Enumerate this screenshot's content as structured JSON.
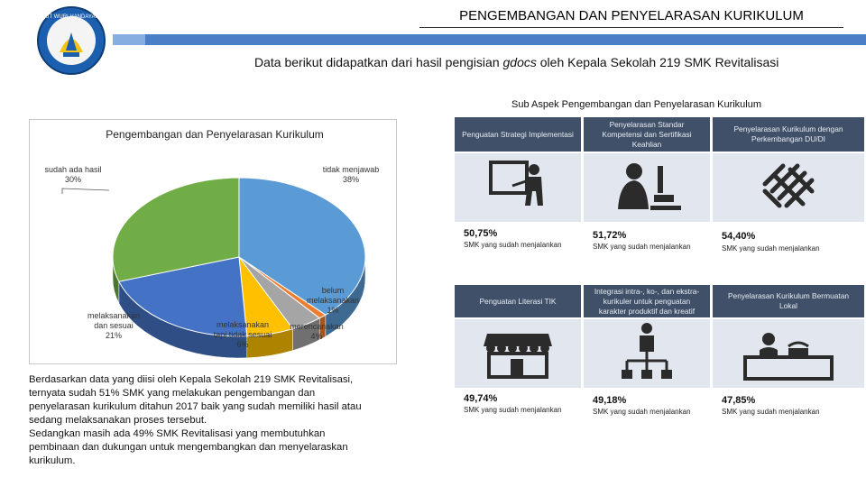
{
  "header": {
    "title": "PENGEMBANGAN DAN PENYELARASAN KURIKULUM",
    "subtitle_before": "Data berikut didapatkan dari hasil pengisian ",
    "subtitle_italic": "gdocs",
    "subtitle_after": " oleh Kepala Sekolah 219 SMK Revitalisasi",
    "logo_text": "TUT WURI HANDAYANI"
  },
  "right_heading": "Sub Aspek Pengembangan dan Penyelarasan Kurikulum",
  "chart_data": {
    "type": "pie",
    "title": "Pengembangan dan Penyelarasan Kurikulum",
    "slices": [
      {
        "name": "tidak menjawab",
        "value": 38,
        "label": "tidak menjawab\n38%",
        "color": "#5b9bd5"
      },
      {
        "name": "belum melaksanakan",
        "value": 1,
        "label": "belum\nmelaksanakan\n1%",
        "color": "#ed7d31"
      },
      {
        "name": "merencanakan",
        "value": 4,
        "label": "merencanakan\n4%",
        "color": "#a5a5a5"
      },
      {
        "name": "melaksanakan tapi tidak sesuai",
        "value": 6,
        "label": "melaksanakan\ntapi tidak sesuai\n6%",
        "color": "#ffc000"
      },
      {
        "name": "melaksanakan dan sesuai",
        "value": 21,
        "label": "melaksanakan\ndan sesuai\n21%",
        "color": "#4472c4"
      },
      {
        "name": "sudah ada hasil",
        "value": 30,
        "label": "sudah ada hasil\n30%",
        "color": "#70ad47"
      }
    ],
    "legend": "none"
  },
  "description": [
    "Berdasarkan data yang diisi oleh Kepala Sekolah 219 SMK Revitalisasi,",
    "ternyata sudah 51% SMK yang melakukan pengembangan dan",
    "penyelarasan kurikulum ditahun 2017 baik yang sudah memiliki hasil atau",
    "sedang melaksanakan proses tersebut.",
    "Sedangkan masih ada 49% SMK Revitalisasi yang membutuhkan",
    "pembinaan dan dukungan untuk mengembangkan dan menyelaraskan",
    "kurikulum."
  ],
  "tiles": [
    {
      "header": "Penguatan Strategi Implementasi",
      "percent": "50,75%",
      "caption": "SMK yang sudah menjalankan",
      "icon": "teacher-board-icon"
    },
    {
      "header": "Penyelarasan Standar Kompetensi dan Sertifikasi Keahlian",
      "percent": "51,72%",
      "caption": "SMK yang sudah menjalankan",
      "icon": "microscope-icon"
    },
    {
      "header": "Penyelarasan Kurikulum dengan Perkembangan DU/DI",
      "percent": "54,40%",
      "caption": "SMK yang sudah menjalankan",
      "icon": "woven-pattern-icon"
    },
    {
      "header": "Penguatan Literasi TIK",
      "percent": "49,74%",
      "caption": "SMK yang sudah menjalankan",
      "icon": "storefront-icon"
    },
    {
      "header": "Integrasi intra-, ko-, dan ekstra-kurikuler untuk penguatan karakter produktif dan kreatif",
      "percent": "49,18%",
      "caption": "SMK yang sudah menjalankan",
      "icon": "org-chart-icon"
    },
    {
      "header": "Penyelarasan Kurikulum Bermuatan Lokal",
      "percent": "47,85%",
      "caption": "SMK yang sudah menjalankan",
      "icon": "receptionist-desk-icon"
    }
  ]
}
